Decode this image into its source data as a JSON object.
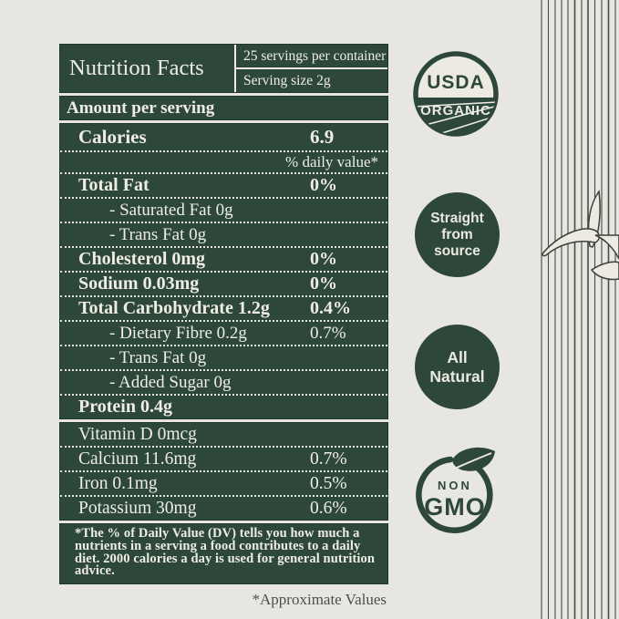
{
  "colors": {
    "page_bg": "#e8e6e0",
    "label_green": "#2d483b",
    "label_border": "#21372c",
    "label_text": "#efede3",
    "note_text": "#49534a"
  },
  "label": {
    "title": "Nutrition Facts",
    "servings_per_container": "25 servings per container",
    "serving_size": "Serving size 2g",
    "amount_per_serving": "Amount per serving",
    "calories": {
      "label": "Calories",
      "value": "6.9"
    },
    "daily_value_header": "% daily value*",
    "rows": [
      {
        "label": "Total Fat",
        "value": "0%",
        "bold": true,
        "indent": false
      },
      {
        "label": "- Saturated Fat 0g",
        "value": "",
        "bold": false,
        "indent": true
      },
      {
        "label": "- Trans Fat 0g",
        "value": "",
        "bold": false,
        "indent": true
      },
      {
        "label": "Cholesterol 0mg",
        "value": "0%",
        "bold": true,
        "indent": false
      },
      {
        "label": "Sodium 0.03mg",
        "value": "0%",
        "bold": true,
        "indent": false
      },
      {
        "label": "Total Carbohydrate 1.2g",
        "value": "0.4%",
        "bold": true,
        "indent": false
      },
      {
        "label": "- Dietary Fibre 0.2g",
        "value": "0.7%",
        "bold": false,
        "indent": true
      },
      {
        "label": "- Trans Fat 0g",
        "value": "",
        "bold": false,
        "indent": true
      },
      {
        "label": "- Added Sugar 0g",
        "value": "",
        "bold": false,
        "indent": true
      },
      {
        "label": "Protein 0.4g",
        "value": "",
        "bold": true,
        "indent": false
      }
    ],
    "micronutrients": [
      {
        "label": "Vitamin D 0mcg",
        "value": ""
      },
      {
        "label": "Calcium 11.6mg",
        "value": "0.7%"
      },
      {
        "label": "Iron 0.1mg",
        "value": "0.5%"
      },
      {
        "label": "Potassium 30mg",
        "value": "0.6%"
      }
    ],
    "footnote": "*The % of Daily Value (DV) tells you how much a nutrients in a serving a food contributes to a daily diet. 2000 calories a day is used for general nutrition advice.",
    "approximate_note": "*Approximate Values"
  },
  "badges": {
    "usda_organic": {
      "top": "USDA",
      "bottom": "ORGANIC"
    },
    "straight_from_source": {
      "lines": [
        "Straight",
        "from",
        "source"
      ]
    },
    "all_natural": {
      "lines": [
        "All",
        "Natural"
      ]
    },
    "non_gmo": {
      "top": "NON",
      "bottom": "GMO"
    }
  }
}
